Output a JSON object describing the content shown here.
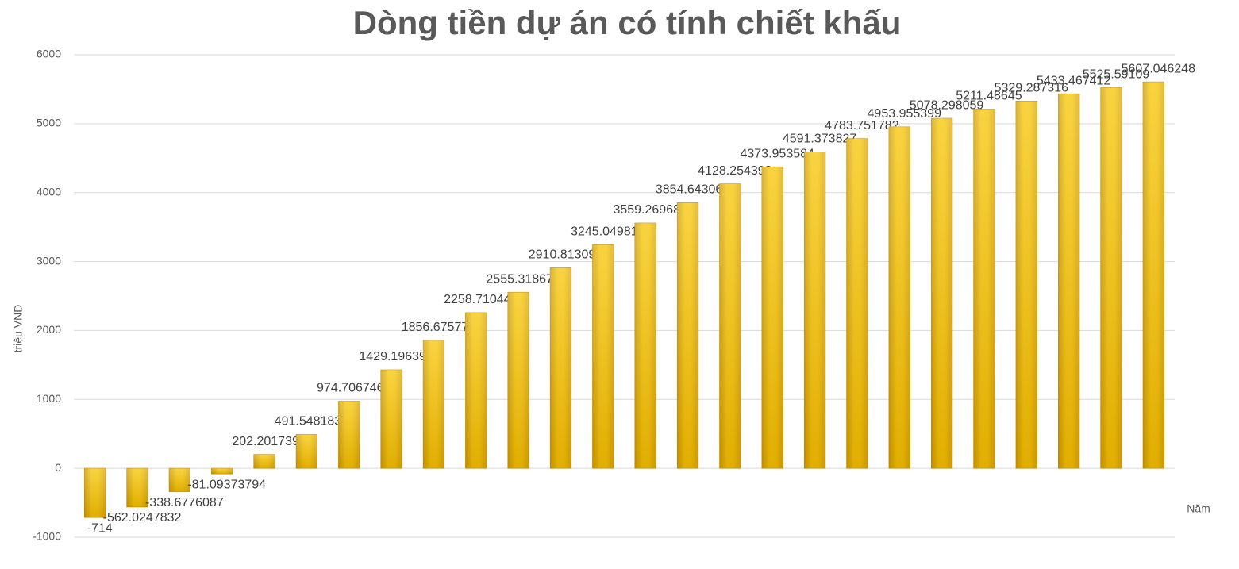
{
  "chart_data": {
    "type": "bar",
    "title": "Dòng tiền dự án có tính chiết khấu",
    "y_label": "triệu VND",
    "x_label": "Năm",
    "categories": [
      null,
      null,
      null,
      null,
      null,
      null,
      null,
      null,
      null,
      null,
      null,
      null,
      null,
      null,
      null,
      null,
      null,
      null,
      null,
      null,
      null,
      null,
      null,
      null,
      null,
      null
    ],
    "values": [
      -714,
      -562.0247832,
      -338.6776087,
      -81.09373794,
      202.2017394,
      491.5481833,
      974.7067461,
      1429.196395,
      1856.675774,
      2258.710448,
      2555.318678,
      2910.813092,
      3245.049817,
      3559.269684,
      3854.643062,
      4128.254398,
      4373.953584,
      4591.373827,
      4783.751782,
      4953.955399,
      5078.298059,
      5211.48645,
      5329.287316,
      5433.467412,
      5525.59109,
      5607.046248
    ],
    "color": "#f7c500",
    "ylim": [
      -1000,
      6000
    ],
    "yticks": [
      -1000,
      0,
      1000,
      2000,
      3000,
      4000,
      5000,
      6000
    ],
    "grid": true
  }
}
